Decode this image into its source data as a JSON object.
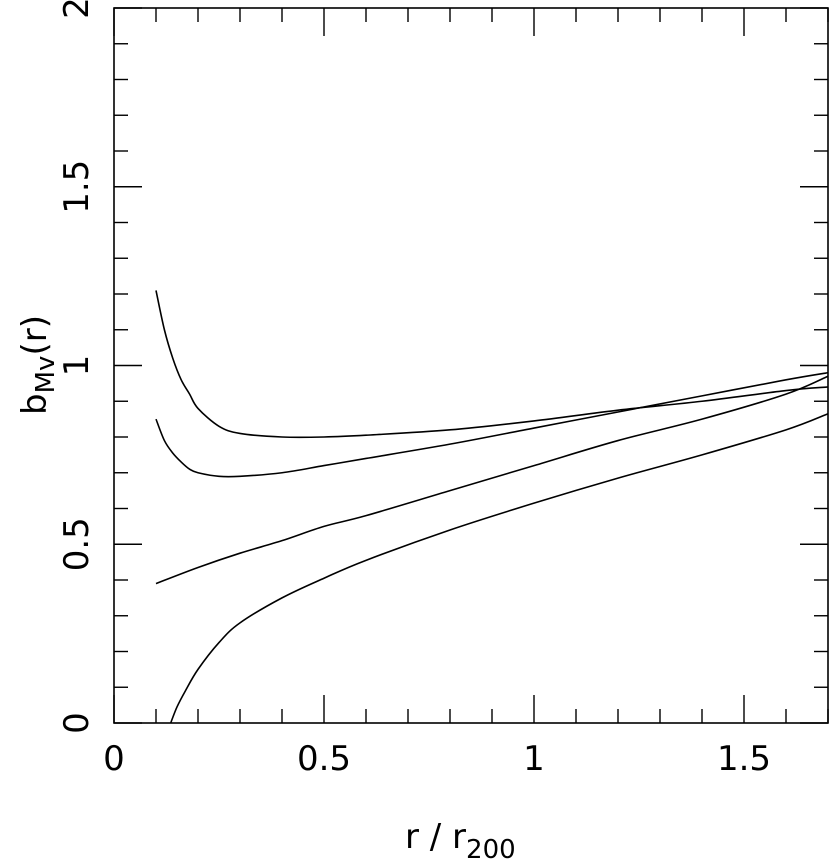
{
  "chart_data": {
    "type": "line",
    "title": "",
    "xlabel": "r / r",
    "xlabel_subscript": "200",
    "ylabel": "b",
    "ylabel_subscript": "Mv",
    "ylabel_suffix": "(r)",
    "xlim": [
      0,
      1.7
    ],
    "ylim": [
      0,
      2
    ],
    "x_ticks": [
      {
        "value": 0,
        "label": "0"
      },
      {
        "value": 0.5,
        "label": "0.5"
      },
      {
        "value": 1,
        "label": "1"
      },
      {
        "value": 1.5,
        "label": "1.5"
      }
    ],
    "y_ticks": [
      {
        "value": 0,
        "label": "0"
      },
      {
        "value": 0.5,
        "label": "0.5"
      },
      {
        "value": 1,
        "label": "1"
      },
      {
        "value": 1.5,
        "label": "1.5"
      },
      {
        "value": 2,
        "label": "2"
      }
    ],
    "grid": false,
    "legend": "none",
    "line_color": "#000000",
    "series": [
      {
        "x": [
          0.1,
          0.12,
          0.14,
          0.16,
          0.18,
          0.2,
          0.25,
          0.3,
          0.4,
          0.5,
          0.6,
          0.8,
          1.0,
          1.2,
          1.4,
          1.6,
          1.7
        ],
        "y": [
          1.21,
          1.1,
          1.02,
          0.96,
          0.92,
          0.88,
          0.83,
          0.81,
          0.8,
          0.8,
          0.805,
          0.82,
          0.845,
          0.875,
          0.9,
          0.93,
          0.94
        ]
      },
      {
        "x": [
          0.1,
          0.12,
          0.14,
          0.16,
          0.18,
          0.2,
          0.25,
          0.3,
          0.4,
          0.5,
          0.6,
          0.8,
          1.0,
          1.2,
          1.4,
          1.6,
          1.7
        ],
        "y": [
          0.85,
          0.79,
          0.755,
          0.73,
          0.71,
          0.7,
          0.69,
          0.69,
          0.7,
          0.72,
          0.74,
          0.78,
          0.825,
          0.87,
          0.915,
          0.96,
          0.98
        ]
      },
      {
        "x": [
          0.1,
          0.2,
          0.3,
          0.4,
          0.5,
          0.6,
          0.8,
          1.0,
          1.2,
          1.4,
          1.6,
          1.7
        ],
        "y": [
          0.39,
          0.435,
          0.475,
          0.51,
          0.55,
          0.58,
          0.65,
          0.72,
          0.79,
          0.85,
          0.92,
          0.97
        ]
      },
      {
        "x": [
          0.135,
          0.15,
          0.17,
          0.2,
          0.25,
          0.3,
          0.4,
          0.5,
          0.6,
          0.8,
          1.0,
          1.2,
          1.4,
          1.6,
          1.7
        ],
        "y": [
          0.0,
          0.045,
          0.09,
          0.15,
          0.225,
          0.28,
          0.35,
          0.405,
          0.455,
          0.54,
          0.615,
          0.685,
          0.75,
          0.82,
          0.865
        ]
      }
    ]
  }
}
